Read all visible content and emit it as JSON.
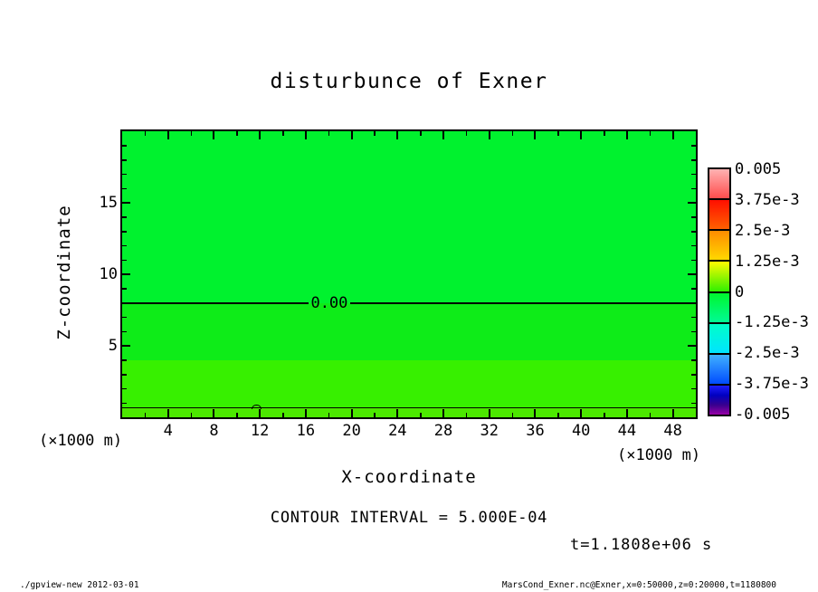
{
  "title": "disturbunce of Exner",
  "chart_data": {
    "type": "heatmap",
    "title": "disturbunce of Exner",
    "xlabel": "X-coordinate",
    "ylabel": "Z-coordinate",
    "x_unit": "(×1000 m)",
    "y_unit": "(×1000 m)",
    "xlim": [
      0,
      50
    ],
    "ylim": [
      0,
      20
    ],
    "x_major_ticks": [
      4,
      8,
      12,
      16,
      20,
      24,
      28,
      32,
      36,
      40,
      44,
      48
    ],
    "x_minor_step": 2,
    "y_major_ticks": [
      5,
      10,
      15
    ],
    "y_minor_step": 1,
    "grid": false,
    "contour_interval": "5.000E-04",
    "fill_bands": [
      {
        "z_from": 8,
        "z_to": 20,
        "color": "#00F22E"
      },
      {
        "z_from": 4,
        "z_to": 8,
        "color": "#0EEC18"
      },
      {
        "z_from": 0.65,
        "z_to": 4,
        "color": "#37F000"
      },
      {
        "z_from": 0,
        "z_to": 0.65,
        "color": "#4CE800"
      }
    ],
    "contour_lines": [
      {
        "z": 8,
        "label": "0.00",
        "line_width": 2,
        "label_x_frac": 0.328,
        "bump_x_frac": null
      },
      {
        "z": 0.65,
        "label": "",
        "line_width": 1,
        "label_x_frac": null,
        "bump_x_frac": 0.226
      }
    ],
    "colorbar": {
      "orientation": "vertical",
      "position": "right",
      "tick_labels": [
        "0.005",
        "3.75e-3",
        "2.5e-3",
        "1.25e-3",
        "0",
        "-1.25e-3",
        "-2.5e-3",
        "-3.75e-3",
        "-0.005"
      ],
      "sections": [
        {
          "stops": [
            "#FFB2B2",
            "#FF4D4D"
          ]
        },
        {
          "stops": [
            "#FF0F00",
            "#FF6000"
          ]
        },
        {
          "stops": [
            "#FF8C00",
            "#FFD800"
          ]
        },
        {
          "stops": [
            "#FFFB00",
            "#30F000"
          ]
        },
        {
          "stops": [
            "#00F62E",
            "#00FB95"
          ]
        },
        {
          "stops": [
            "#00FFC8",
            "#00E4FF"
          ]
        },
        {
          "stops": [
            "#40B0FF",
            "#004CFF"
          ]
        },
        {
          "stops": [
            "#1E1EFF",
            "#0000C0",
            "#38008E",
            "#9600A6"
          ]
        }
      ]
    }
  },
  "annotations": {
    "contour_interval_text": "CONTOUR INTERVAL = 5.000E-04",
    "time_text": "t=1.1808e+06 s"
  },
  "footer": {
    "left": "./gpview-new  2012-03-01",
    "right": "MarsCond_Exner.nc@Exner,x=0:50000,z=0:20000,t=1180800"
  }
}
